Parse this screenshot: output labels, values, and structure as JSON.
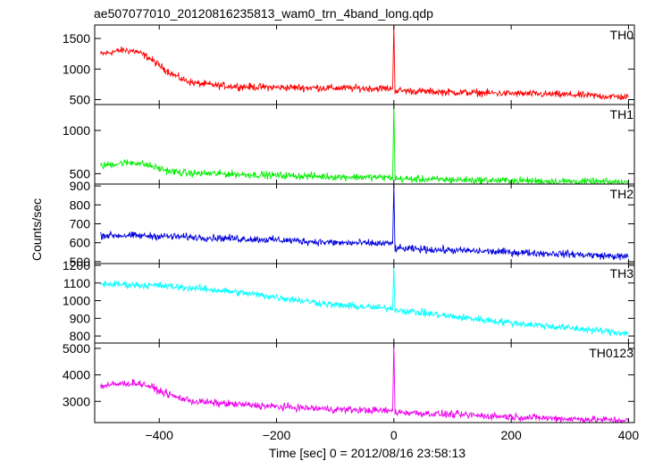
{
  "chart_data": {
    "type": "line",
    "title": "ae507077010_20120816235813_wam0_trn_4band_long.qdp",
    "xlabel": "Time [sec] 0 = 2012/08/16 23:58:13",
    "ylabel": "Counts/sec",
    "xlim": [
      -510,
      410
    ],
    "x_ticks": [
      -400,
      -200,
      0,
      200,
      400
    ],
    "panels": [
      {
        "name": "TH0",
        "color": "#ff0000",
        "ylim": [
          420,
          1720
        ],
        "y_ticks": [
          500,
          1000,
          1500
        ],
        "points": [
          [
            -500,
            1240
          ],
          [
            -480,
            1280
          ],
          [
            -460,
            1310
          ],
          [
            -440,
            1290
          ],
          [
            -420,
            1200
          ],
          [
            -400,
            1060
          ],
          [
            -380,
            930
          ],
          [
            -360,
            830
          ],
          [
            -340,
            770
          ],
          [
            -300,
            730
          ],
          [
            -250,
            710
          ],
          [
            -200,
            700
          ],
          [
            -100,
            690
          ],
          [
            -2,
            680
          ],
          [
            0,
            1720
          ],
          [
            2,
            650
          ],
          [
            100,
            620
          ],
          [
            200,
            600
          ],
          [
            300,
            580
          ],
          [
            400,
            540
          ]
        ]
      },
      {
        "name": "TH1",
        "color": "#00ee00",
        "ylim": [
          380,
          1300
        ],
        "y_ticks": [
          500,
          1000
        ],
        "points": [
          [
            -500,
            590
          ],
          [
            -470,
            620
          ],
          [
            -440,
            630
          ],
          [
            -420,
            600
          ],
          [
            -400,
            560
          ],
          [
            -380,
            525
          ],
          [
            -350,
            505
          ],
          [
            -300,
            500
          ],
          [
            -200,
            480
          ],
          [
            -100,
            465
          ],
          [
            -2,
            455
          ],
          [
            0,
            1300
          ],
          [
            2,
            440
          ],
          [
            100,
            430
          ],
          [
            200,
            420
          ],
          [
            300,
            410
          ],
          [
            400,
            400
          ]
        ]
      },
      {
        "name": "TH2",
        "color": "#0000dd",
        "ylim": [
          490,
          910
        ],
        "y_ticks": [
          500,
          600,
          700,
          800,
          900
        ],
        "points": [
          [
            -500,
            640
          ],
          [
            -400,
            635
          ],
          [
            -300,
            625
          ],
          [
            -200,
            615
          ],
          [
            -100,
            600
          ],
          [
            -2,
            595
          ],
          [
            0,
            910
          ],
          [
            2,
            570
          ],
          [
            100,
            560
          ],
          [
            200,
            550
          ],
          [
            300,
            540
          ],
          [
            400,
            525
          ]
        ]
      },
      {
        "name": "TH3",
        "color": "#00ffff",
        "ylim": [
          760,
          1210
        ],
        "y_ticks": [
          800,
          900,
          1000,
          1100,
          1200
        ],
        "points": [
          [
            -500,
            1095
          ],
          [
            -400,
            1085
          ],
          [
            -300,
            1060
          ],
          [
            -200,
            1020
          ],
          [
            -100,
            975
          ],
          [
            -2,
            955
          ],
          [
            0,
            1200
          ],
          [
            2,
            950
          ],
          [
            100,
            910
          ],
          [
            200,
            875
          ],
          [
            300,
            845
          ],
          [
            400,
            815
          ]
        ]
      },
      {
        "name": "TH0123",
        "color": "#ee00ee",
        "ylim": [
          2200,
          5200
        ],
        "y_ticks": [
          3000,
          4000,
          5000
        ],
        "points": [
          [
            -500,
            3580
          ],
          [
            -470,
            3650
          ],
          [
            -440,
            3700
          ],
          [
            -420,
            3600
          ],
          [
            -400,
            3400
          ],
          [
            -370,
            3150
          ],
          [
            -340,
            3000
          ],
          [
            -300,
            2930
          ],
          [
            -200,
            2800
          ],
          [
            -100,
            2700
          ],
          [
            -2,
            2640
          ],
          [
            0,
            5200
          ],
          [
            2,
            2600
          ],
          [
            100,
            2500
          ],
          [
            200,
            2420
          ],
          [
            300,
            2340
          ],
          [
            400,
            2280
          ]
        ]
      }
    ]
  }
}
